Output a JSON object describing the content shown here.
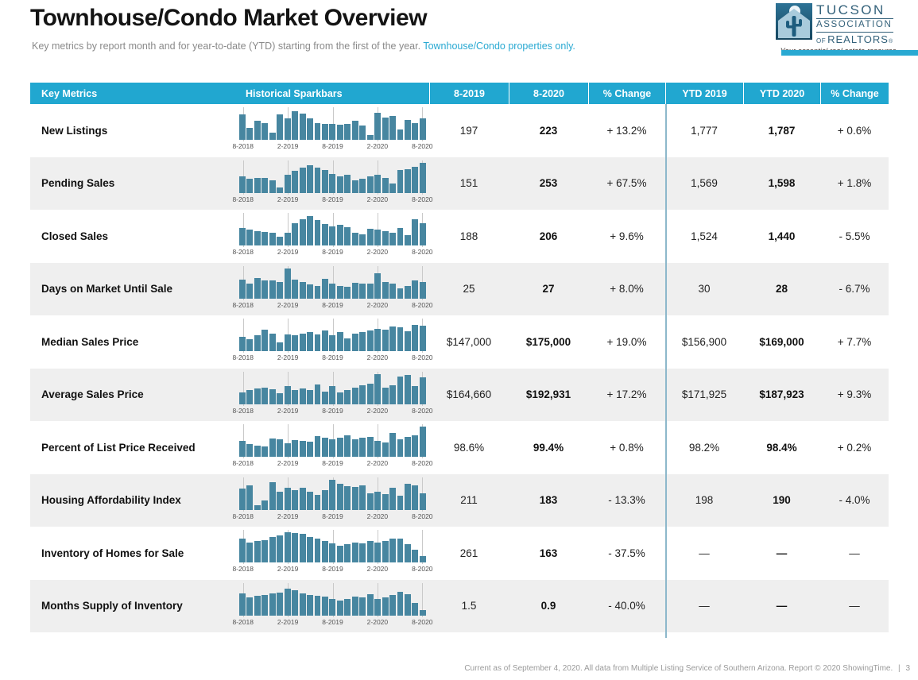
{
  "page": {
    "title": "Townhouse/Condo Market Overview",
    "subtitle_main": "Key metrics by report month and for year-to-date (YTD) starting from the first of the year. ",
    "subtitle_teal": "Townhouse/Condo properties only.",
    "footer_text": "Current as of September 4, 2020. All data from Multiple Listing Service of Southern Arizona. Report © 2020 ShowingTime.",
    "footer_separator": "|",
    "page_number": "3"
  },
  "logo": {
    "line1": "TUCSON",
    "line2": "ASSOCIATION",
    "line3_of": "OF",
    "line3": "REALTORS",
    "registered": "®",
    "tagline": "Your essential real estate resource.",
    "icon": "house-cactus-icon"
  },
  "colors": {
    "header_teal": "#21a7d0",
    "subtitle_teal": "#29a9d2",
    "spark_bar": "#4786a0",
    "row_alt_gray": "#efefef",
    "ytd_divider_blue": "#8db8cb",
    "logo_blue": "#33617a"
  },
  "table": {
    "headers": [
      "Key Metrics",
      "Historical Sparkbars",
      "8-2019",
      "8-2020",
      "% Change",
      "YTD 2019",
      "YTD 2020",
      "% Change"
    ],
    "axis_labels": [
      "8-2018",
      "2-2019",
      "8-2019",
      "2-2020",
      "8-2020"
    ],
    "axis_positions_pct": [
      2,
      26,
      50,
      74,
      98
    ],
    "rows": [
      {
        "metric": "New Listings",
        "m2019": "197",
        "m2020": "223",
        "change": "+ 13.2%",
        "ytd2019": "1,777",
        "ytd2020": "1,787",
        "ytd_change": "+ 0.6%",
        "spark": [
          0.85,
          0.4,
          0.62,
          0.55,
          0.25,
          0.85,
          0.72,
          0.95,
          0.88,
          0.7,
          0.56,
          0.52,
          0.52,
          0.5,
          0.52,
          0.62,
          0.48,
          0.15,
          0.9,
          0.75,
          0.78,
          0.35,
          0.65,
          0.55,
          0.7
        ]
      },
      {
        "metric": "Pending Sales",
        "m2019": "151",
        "m2020": "253",
        "change": "+ 67.5%",
        "ytd2019": "1,569",
        "ytd2020": "1,598",
        "ytd_change": "+ 1.8%",
        "spark": [
          0.55,
          0.45,
          0.5,
          0.48,
          0.4,
          0.18,
          0.58,
          0.72,
          0.82,
          0.9,
          0.82,
          0.74,
          0.62,
          0.55,
          0.6,
          0.42,
          0.45,
          0.55,
          0.58,
          0.48,
          0.3,
          0.75,
          0.78,
          0.85,
          1.0
        ]
      },
      {
        "metric": "Closed Sales",
        "m2019": "188",
        "m2020": "206",
        "change": "+ 9.6%",
        "ytd2019": "1,524",
        "ytd2020": "1,440",
        "ytd_change": "- 5.5%",
        "spark": [
          0.58,
          0.52,
          0.48,
          0.45,
          0.42,
          0.3,
          0.42,
          0.75,
          0.88,
          0.98,
          0.85,
          0.72,
          0.62,
          0.68,
          0.6,
          0.42,
          0.38,
          0.55,
          0.52,
          0.48,
          0.42,
          0.58,
          0.35,
          0.88,
          0.75
        ]
      },
      {
        "metric": "Days on Market Until Sale",
        "m2019": "25",
        "m2020": "27",
        "change": "+ 8.0%",
        "ytd2019": "30",
        "ytd2020": "28",
        "ytd_change": "- 6.7%",
        "spark": [
          0.62,
          0.5,
          0.68,
          0.6,
          0.58,
          0.55,
          1.0,
          0.62,
          0.55,
          0.45,
          0.42,
          0.65,
          0.5,
          0.42,
          0.38,
          0.52,
          0.48,
          0.5,
          0.82,
          0.55,
          0.48,
          0.32,
          0.42,
          0.58,
          0.55
        ]
      },
      {
        "metric": "Median Sales Price",
        "m2019": "$147,000",
        "m2020": "$175,000",
        "change": "+ 19.0%",
        "ytd2019": "$156,900",
        "ytd2020": "$169,000",
        "ytd_change": "+ 7.7%",
        "spark": [
          0.48,
          0.4,
          0.52,
          0.7,
          0.58,
          0.3,
          0.55,
          0.52,
          0.58,
          0.62,
          0.55,
          0.68,
          0.52,
          0.62,
          0.42,
          0.58,
          0.62,
          0.68,
          0.75,
          0.7,
          0.82,
          0.78,
          0.65,
          0.88,
          0.85
        ]
      },
      {
        "metric": "Average Sales Price",
        "m2019": "$164,660",
        "m2020": "$192,931",
        "change": "+ 17.2%",
        "ytd2019": "$171,925",
        "ytd2020": "$187,923",
        "ytd_change": "+ 9.3%",
        "spark": [
          0.38,
          0.45,
          0.52,
          0.55,
          0.5,
          0.35,
          0.6,
          0.45,
          0.52,
          0.45,
          0.65,
          0.4,
          0.58,
          0.38,
          0.45,
          0.55,
          0.62,
          0.68,
          1.0,
          0.55,
          0.62,
          0.9,
          0.95,
          0.58,
          0.88
        ]
      },
      {
        "metric": "Percent of List Price Received",
        "m2019": "98.6%",
        "m2020": "99.4%",
        "change": "+ 0.8%",
        "ytd2019": "98.2%",
        "ytd2020": "98.4%",
        "ytd_change": "+ 0.2%",
        "spark": [
          0.52,
          0.42,
          0.38,
          0.35,
          0.6,
          0.58,
          0.45,
          0.55,
          0.52,
          0.5,
          0.68,
          0.62,
          0.58,
          0.62,
          0.7,
          0.58,
          0.62,
          0.65,
          0.52,
          0.48,
          0.8,
          0.58,
          0.65,
          0.7,
          1.0
        ]
      },
      {
        "metric": "Housing Affordability Index",
        "m2019": "211",
        "m2020": "183",
        "change": "- 13.3%",
        "ytd2019": "198",
        "ytd2020": "190",
        "ytd_change": "- 4.0%",
        "spark": [
          0.7,
          0.8,
          0.15,
          0.3,
          0.9,
          0.6,
          0.72,
          0.65,
          0.72,
          0.6,
          0.5,
          0.65,
          1.0,
          0.85,
          0.78,
          0.75,
          0.8,
          0.55,
          0.6,
          0.52,
          0.72,
          0.45,
          0.85,
          0.8,
          0.55
        ]
      },
      {
        "metric": "Inventory of Homes for Sale",
        "m2019": "261",
        "m2020": "163",
        "change": "- 37.5%",
        "ytd2019": "—",
        "ytd2020": "—",
        "ytd_change": "—",
        "spark": [
          0.8,
          0.65,
          0.7,
          0.75,
          0.85,
          0.9,
          1.0,
          0.98,
          0.95,
          0.85,
          0.78,
          0.7,
          0.62,
          0.55,
          0.6,
          0.65,
          0.62,
          0.72,
          0.65,
          0.72,
          0.78,
          0.8,
          0.6,
          0.42,
          0.22
        ]
      },
      {
        "metric": "Months Supply of Inventory",
        "m2019": "1.5",
        "m2020": "0.9",
        "change": "- 40.0%",
        "ytd2019": "—",
        "ytd2020": "—",
        "ytd_change": "—",
        "spark": [
          0.72,
          0.58,
          0.65,
          0.68,
          0.72,
          0.75,
          0.88,
          0.82,
          0.72,
          0.68,
          0.65,
          0.62,
          0.55,
          0.48,
          0.55,
          0.62,
          0.6,
          0.7,
          0.55,
          0.6,
          0.68,
          0.78,
          0.7,
          0.42,
          0.18
        ]
      }
    ]
  }
}
